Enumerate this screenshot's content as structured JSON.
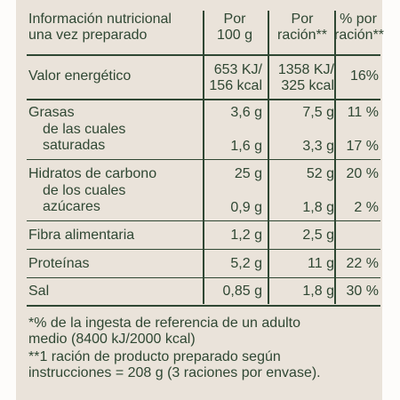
{
  "header": {
    "name_line1": "Información nutricional",
    "name_line2": "una vez preparado",
    "per100_line1": "Por",
    "per100_line2": "100 g",
    "portion_line1": "Por",
    "portion_line2": "ración**",
    "pct_line1": "% por",
    "pct_line2": "ración**"
  },
  "rows": {
    "energy": {
      "name": "Valor energético",
      "per100_line1": "653 KJ/",
      "per100_line2": "156 kcal",
      "portion_line1": "1358 KJ/",
      "portion_line2": "325 kcal",
      "pct": "16%"
    },
    "fat": {
      "name": "Grasas",
      "per100": "3,6 g",
      "portion": "7,5 g",
      "pct": "11 %"
    },
    "saturated": {
      "name_line1": "de las cuales",
      "name_line2": "saturadas",
      "per100": "1,6 g",
      "portion": "3,3 g",
      "pct": "17 %"
    },
    "carbs": {
      "name": "Hidratos de carbono",
      "per100": "25 g",
      "portion": "52 g",
      "pct": "20 %"
    },
    "sugars": {
      "name_line1": "de los cuales",
      "name_line2": "azúcares",
      "per100": "0,9 g",
      "portion": "1,8 g",
      "pct": "2 %"
    },
    "fiber": {
      "name": "Fibra alimentaria",
      "per100": "1,2 g",
      "portion": "2,5 g",
      "pct": ""
    },
    "protein": {
      "name": "Proteínas",
      "per100": "5,2 g",
      "portion": "11 g",
      "pct": "22 %"
    },
    "salt": {
      "name": "Sal",
      "per100": "0,85 g",
      "portion": "1,8 g",
      "pct": "30 %"
    }
  },
  "footnotes": {
    "line1": "*% de la ingesta de referencia de un adulto",
    "line2": "medio (8400 kJ/2000 kcal)",
    "line3": "**1 ración de producto preparado según",
    "line4": "instrucciones = 208 g (3 raciones por envase)."
  },
  "colors": {
    "text": "#2f4733",
    "panel": "#eae3da"
  }
}
